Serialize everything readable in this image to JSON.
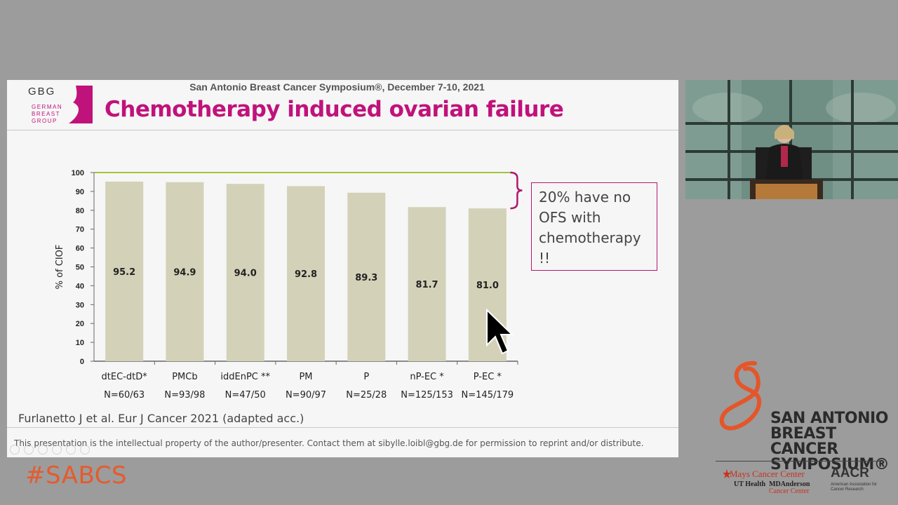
{
  "slide": {
    "conference": "San Antonio Breast Cancer Symposium®, December 7-10, 2021",
    "title": "Chemotherapy induced ovarian failure",
    "logo": {
      "abbr": "GBG",
      "line1": "GERMAN",
      "line2": "BREAST",
      "line3": "GROUP"
    },
    "callout": {
      "line1": "20% have no",
      "line2": "OFS with",
      "line3": "chemotherapy",
      "line4": "!!"
    },
    "citation": "Furlanetto J et al. Eur J Cancer 2021 (adapted acc.)",
    "disclaimer": "This presentation is the intellectual property of the author/presenter. Contact them at  sibylle.loibl@gbg.de  for permission to reprint and/or distribute."
  },
  "chart_data": {
    "type": "bar",
    "categories": [
      "dtEC-dtD*",
      "PMCb",
      "iddEnPC **",
      "PM",
      "P",
      "nP-EC *",
      "P-EC *"
    ],
    "sublabels": [
      "N=60/63",
      "N=93/98",
      "N=47/50",
      "N=90/97",
      "N=25/28",
      "N=125/153",
      "N=145/179"
    ],
    "values": [
      95.2,
      94.9,
      94.0,
      92.8,
      89.3,
      81.7,
      81.0
    ],
    "value_labels": [
      "95.2",
      "94.9",
      "94.0",
      "92.8",
      "89.3",
      "81.7",
      "81.0"
    ],
    "ylabel": "% of CIOF",
    "ylim": [
      0,
      100
    ],
    "yticks": [
      "0",
      "10",
      "20",
      "30",
      "40",
      "50",
      "60",
      "70",
      "80",
      "90",
      "100"
    ],
    "reference_line": 100,
    "bar_color": "#d3d2b9",
    "reference_color": "#9fc43c",
    "bracket_color": "#b0176e"
  },
  "overlay": {
    "hashtag": "#SABCS",
    "sabcs": {
      "line1": "SAN ANTONIO",
      "line2": "BREAST CANCER",
      "line3": "SYMPOSIUM®"
    },
    "partner1": "Mays Cancer Center",
    "partner2_a": "UT Health",
    "partner2_b": "MDAnderson",
    "partner2_c": "Cancer Center",
    "partner3": "AACR",
    "partner3_sub": "American Association for Cancer Research"
  }
}
